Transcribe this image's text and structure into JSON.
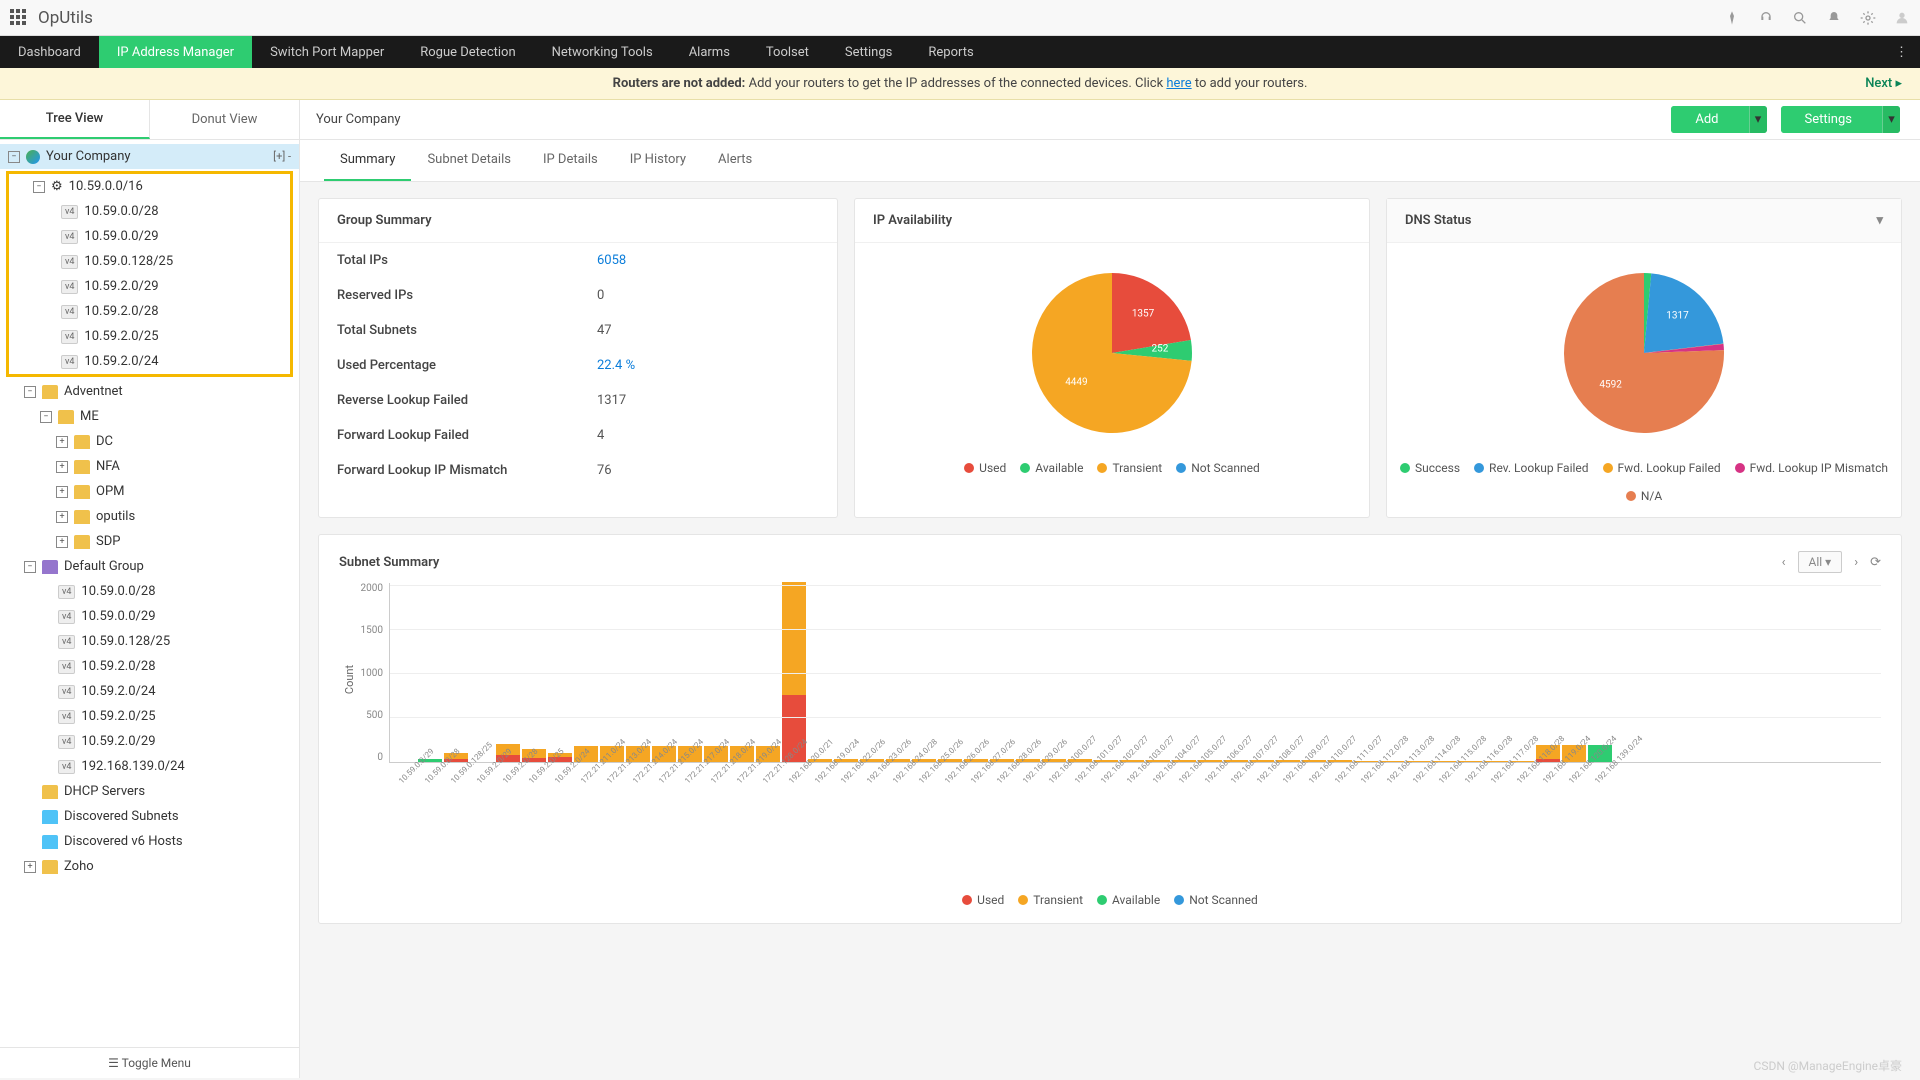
{
  "brand": "OpUtils",
  "nav": [
    "Dashboard",
    "IP Address Manager",
    "Switch Port Mapper",
    "Rogue Detection",
    "Networking Tools",
    "Alarms",
    "Toolset",
    "Settings",
    "Reports"
  ],
  "nav_active": 1,
  "banner": {
    "bold": "Routers are not added:",
    "text": " Add your routers to get the IP addresses of the connected devices. Click ",
    "link": "here",
    "text2": " to add your routers.",
    "next": "Next ▸"
  },
  "view_tabs": [
    "Tree View",
    "Donut View"
  ],
  "view_active": 0,
  "crumb": "Your Company",
  "hdr_buttons": {
    "add": "Add",
    "settings": "Settings"
  },
  "tree": {
    "root": "Your Company",
    "root_actions": "[+]  -",
    "highlighted": {
      "parent": "10.59.0.0/16",
      "items": [
        "10.59.0.0/28",
        "10.59.0.0/29",
        "10.59.0.128/25",
        "10.59.2.0/29",
        "10.59.2.0/28",
        "10.59.2.0/25",
        "10.59.2.0/24"
      ]
    },
    "folders": [
      {
        "name": "Adventnet",
        "exp": true,
        "color": "#f0c14b",
        "children": [
          {
            "name": "ME",
            "exp": true,
            "color": "#f0c14b",
            "children": [
              {
                "name": "DC",
                "color": "#f0c14b",
                "exp": false
              },
              {
                "name": "NFA",
                "color": "#f0c14b",
                "exp": false
              },
              {
                "name": "OPM",
                "color": "#f0c14b",
                "exp": false
              },
              {
                "name": "oputils",
                "color": "#f0c14b",
                "exp": false
              },
              {
                "name": "SDP",
                "color": "#f0c14b",
                "exp": false
              }
            ]
          }
        ]
      },
      {
        "name": "Default Group",
        "exp": true,
        "color": "#9575cd",
        "subnets": [
          "10.59.0.0/28",
          "10.59.0.0/29",
          "10.59.0.128/25",
          "10.59.2.0/28",
          "10.59.2.0/24",
          "10.59.2.0/25",
          "10.59.2.0/29",
          "192.168.139.0/24"
        ]
      },
      {
        "name": "DHCP Servers",
        "color": "#f0c14b"
      },
      {
        "name": "Discovered Subnets",
        "color": "#4fc3f7",
        "icon": "search"
      },
      {
        "name": "Discovered v6 Hosts",
        "color": "#4fc3f7",
        "icon": "search"
      },
      {
        "name": "Zoho",
        "color": "#f0c14b",
        "exp": false
      }
    ],
    "toggle": "Toggle Menu"
  },
  "tabs2": [
    "Summary",
    "Subnet Details",
    "IP Details",
    "IP History",
    "Alerts"
  ],
  "tabs2_active": 0,
  "group_summary": {
    "title": "Group Summary",
    "rows": [
      {
        "label": "Total IPs",
        "value": "6058",
        "link": true
      },
      {
        "label": "Reserved IPs",
        "value": "0"
      },
      {
        "label": "Total Subnets",
        "value": "47"
      },
      {
        "label": "Used Percentage",
        "value": "22.4 %",
        "link": true
      },
      {
        "label": "Reverse Lookup Failed",
        "value": "1317"
      },
      {
        "label": "Forward Lookup Failed",
        "value": "4"
      },
      {
        "label": "Forward Lookup IP Mismatch",
        "value": "76"
      }
    ]
  },
  "ip_avail": {
    "title": "IP Availability",
    "slices": [
      {
        "label": "Used",
        "value": 1357,
        "color": "#e74c3c"
      },
      {
        "label": "Available",
        "value": 252,
        "color": "#2ecc71"
      },
      {
        "label": "Transient",
        "value": 4449,
        "color": "#f5a623"
      },
      {
        "label": "Not Scanned",
        "value": 0,
        "color": "#3498db"
      }
    ]
  },
  "dns_status": {
    "title": "DNS Status",
    "slices": [
      {
        "label": "Success",
        "value": 88,
        "color": "#2ecc71"
      },
      {
        "label": "Rev. Lookup Failed",
        "value": 1317,
        "color": "#3498db"
      },
      {
        "label": "Fwd. Lookup Failed",
        "value": 4,
        "color": "#f5a623"
      },
      {
        "label": "Fwd. Lookup IP Mismatch",
        "value": 76,
        "color": "#d63384"
      },
      {
        "label": "N/A",
        "value": 4592,
        "color": "#e67e50"
      }
    ]
  },
  "subnet_summary": {
    "title": "Subnet Summary",
    "filter": "All",
    "ylabel": "Count",
    "ymax": 2050,
    "yticks": [
      0,
      500,
      1000,
      1500,
      2000
    ],
    "colors": {
      "Used": "#e74c3c",
      "Transient": "#f5a623",
      "Available": "#2ecc71",
      "Not Scanned": "#3498db"
    },
    "legend": [
      "Used",
      "Transient",
      "Available",
      "Not Scanned"
    ],
    "bars": [
      {
        "x": "10.59.0.0/29",
        "s": [
          0,
          0,
          0,
          0
        ]
      },
      {
        "x": "10.59.0.0/28",
        "s": [
          0,
          0,
          30,
          0
        ]
      },
      {
        "x": "10.59.0.128/25",
        "s": [
          40,
          60,
          0,
          0
        ]
      },
      {
        "x": "10.59.2.0/29",
        "s": [
          0,
          0,
          0,
          0
        ]
      },
      {
        "x": "10.59.2.0/28",
        "s": [
          80,
          130,
          0,
          0
        ]
      },
      {
        "x": "10.59.2.0/25",
        "s": [
          50,
          100,
          0,
          0
        ]
      },
      {
        "x": "10.59.2.0/24",
        "s": [
          60,
          40,
          0,
          0
        ]
      },
      {
        "x": "172.21.211.0/24",
        "s": [
          0,
          180,
          0,
          0
        ]
      },
      {
        "x": "172.21.213.0/24",
        "s": [
          0,
          180,
          0,
          0
        ]
      },
      {
        "x": "172.21.214.0/24",
        "s": [
          0,
          180,
          0,
          0
        ]
      },
      {
        "x": "172.21.215.0/24",
        "s": [
          0,
          180,
          0,
          0
        ]
      },
      {
        "x": "172.21.217.0/24",
        "s": [
          0,
          180,
          0,
          0
        ]
      },
      {
        "x": "172.21.218.0/24",
        "s": [
          0,
          180,
          0,
          0
        ]
      },
      {
        "x": "172.21.219.0/24",
        "s": [
          0,
          180,
          0,
          0
        ]
      },
      {
        "x": "172.21.128.0/24",
        "s": [
          0,
          180,
          0,
          0
        ]
      },
      {
        "x": "192.168.20.0/21",
        "s": [
          760,
          1290,
          0,
          0
        ]
      },
      {
        "x": "192.168.19.0/24",
        "s": [
          0,
          40,
          0,
          0
        ]
      },
      {
        "x": "192.168.22.0/26",
        "s": [
          0,
          40,
          0,
          0
        ]
      },
      {
        "x": "192.168.23.0/26",
        "s": [
          0,
          40,
          0,
          0
        ]
      },
      {
        "x": "192.168.24.0/28",
        "s": [
          0,
          40,
          0,
          0
        ]
      },
      {
        "x": "192.168.25.0/26",
        "s": [
          0,
          40,
          0,
          0
        ]
      },
      {
        "x": "192.168.26.0/26",
        "s": [
          0,
          40,
          0,
          0
        ]
      },
      {
        "x": "192.168.27.0/26",
        "s": [
          0,
          40,
          0,
          0
        ]
      },
      {
        "x": "192.168.28.0/26",
        "s": [
          0,
          40,
          0,
          0
        ]
      },
      {
        "x": "192.168.29.0/26",
        "s": [
          0,
          40,
          0,
          0
        ]
      },
      {
        "x": "192.168.100.0/27",
        "s": [
          0,
          40,
          0,
          0
        ]
      },
      {
        "x": "192.168.101.0/27",
        "s": [
          0,
          40,
          0,
          0
        ]
      },
      {
        "x": "192.168.102.0/27",
        "s": [
          0,
          20,
          0,
          0
        ]
      },
      {
        "x": "192.168.103.0/27",
        "s": [
          0,
          20,
          0,
          0
        ]
      },
      {
        "x": "192.168.104.0/27",
        "s": [
          0,
          20,
          0,
          0
        ]
      },
      {
        "x": "192.168.105.0/27",
        "s": [
          0,
          20,
          0,
          0
        ]
      },
      {
        "x": "192.168.106.0/27",
        "s": [
          0,
          20,
          0,
          0
        ]
      },
      {
        "x": "192.168.107.0/27",
        "s": [
          0,
          20,
          0,
          0
        ]
      },
      {
        "x": "192.168.108.0/27",
        "s": [
          0,
          20,
          0,
          0
        ]
      },
      {
        "x": "192.168.109.0/27",
        "s": [
          0,
          20,
          0,
          0
        ]
      },
      {
        "x": "192.168.110.0/27",
        "s": [
          0,
          20,
          0,
          0
        ]
      },
      {
        "x": "192.168.111.0/27",
        "s": [
          0,
          20,
          0,
          0
        ]
      },
      {
        "x": "192.168.112.0/28",
        "s": [
          0,
          15,
          0,
          0
        ]
      },
      {
        "x": "192.168.113.0/28",
        "s": [
          0,
          15,
          0,
          0
        ]
      },
      {
        "x": "192.168.114.0/28",
        "s": [
          0,
          15,
          0,
          0
        ]
      },
      {
        "x": "192.168.115.0/28",
        "s": [
          0,
          15,
          0,
          0
        ]
      },
      {
        "x": "192.168.116.0/28",
        "s": [
          0,
          15,
          0,
          0
        ]
      },
      {
        "x": "192.168.117.0/28",
        "s": [
          0,
          15,
          0,
          0
        ]
      },
      {
        "x": "192.168.118.0/28",
        "s": [
          0,
          15,
          0,
          0
        ]
      },
      {
        "x": "192.168.119.0/24",
        "s": [
          40,
          150,
          0,
          0
        ]
      },
      {
        "x": "192.168.120.0/24",
        "s": [
          0,
          190,
          0,
          0
        ]
      },
      {
        "x": "192.168.139.0/24",
        "s": [
          0,
          0,
          190,
          0
        ]
      }
    ]
  },
  "watermark": "CSDN @ManageEngine卓豪"
}
